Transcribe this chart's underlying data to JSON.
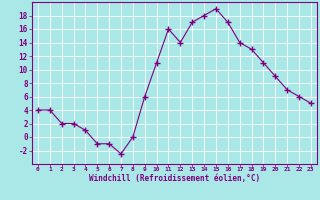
{
  "x": [
    0,
    1,
    2,
    3,
    4,
    5,
    6,
    7,
    8,
    9,
    10,
    11,
    12,
    13,
    14,
    15,
    16,
    17,
    18,
    19,
    20,
    21,
    22,
    23
  ],
  "y": [
    4,
    4,
    2,
    2,
    1,
    -1,
    -1,
    -2.5,
    0,
    6,
    11,
    16,
    14,
    17,
    18,
    19,
    17,
    14,
    13,
    11,
    9,
    7,
    6,
    5
  ],
  "line_color": "#800080",
  "marker": "+",
  "marker_size": 4,
  "bg_color": "#aae8e8",
  "grid_color": "#c8e8e8",
  "xlabel": "Windchill (Refroidissement éolien,°C)",
  "xlabel_color": "#800080",
  "tick_label_color": "#800080",
  "ylim": [
    -4,
    20
  ],
  "yticks": [
    -2,
    0,
    2,
    4,
    6,
    8,
    10,
    12,
    14,
    16,
    18
  ],
  "xticks": [
    0,
    1,
    2,
    3,
    4,
    5,
    6,
    7,
    8,
    9,
    10,
    11,
    12,
    13,
    14,
    15,
    16,
    17,
    18,
    19,
    20,
    21,
    22,
    23
  ],
  "xlim": [
    -0.5,
    23.5
  ]
}
